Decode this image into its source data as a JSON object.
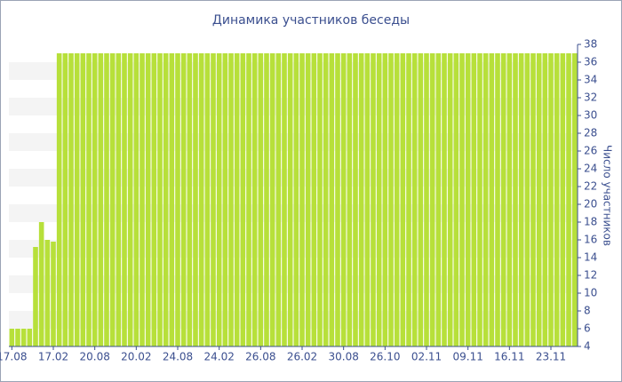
{
  "chart_data": {
    "type": "bar",
    "title": "Динамика участников беседы",
    "y_axis_label": "Число участников",
    "categories": [
      "17.08",
      null,
      null,
      null,
      null,
      null,
      null,
      "17.02",
      null,
      null,
      null,
      null,
      null,
      null,
      "20.08",
      null,
      null,
      null,
      null,
      null,
      null,
      "20.02",
      null,
      null,
      null,
      null,
      null,
      null,
      "24.08",
      null,
      null,
      null,
      null,
      null,
      null,
      "24.02",
      null,
      null,
      null,
      null,
      null,
      null,
      "26.08",
      null,
      null,
      null,
      null,
      null,
      null,
      "26.02",
      null,
      null,
      null,
      null,
      null,
      null,
      "30.08",
      null,
      null,
      null,
      null,
      null,
      null,
      "26.10",
      null,
      null,
      null,
      null,
      null,
      null,
      "02.11",
      null,
      null,
      null,
      null,
      null,
      null,
      "09.11",
      null,
      null,
      null,
      null,
      null,
      null,
      "16.11",
      null,
      null,
      null,
      null,
      null,
      null,
      "23.11",
      null,
      null,
      null,
      null
    ],
    "values": [
      6,
      6,
      6,
      6,
      15.2,
      18,
      16,
      15.8,
      37,
      37,
      37,
      37,
      37,
      37,
      37,
      37,
      37,
      37,
      37,
      37,
      37,
      37,
      37,
      37,
      37,
      37,
      37,
      37,
      37,
      37,
      37,
      37,
      37,
      37,
      37,
      37,
      37,
      37,
      37,
      37,
      37,
      37,
      37,
      37,
      37,
      37,
      37,
      37,
      37,
      37,
      37,
      37,
      37,
      37,
      37,
      37,
      37,
      37,
      37,
      37,
      37,
      37,
      37,
      37,
      37,
      37,
      37,
      37,
      37,
      37,
      37,
      37,
      37,
      37,
      37,
      37,
      37,
      37,
      37,
      37,
      37,
      37,
      37,
      37,
      37,
      37,
      37,
      37,
      37,
      37,
      37,
      37,
      37,
      37,
      37,
      37
    ],
    "color": "#b7e03a",
    "ylim": [
      4,
      38
    ],
    "yticks": [
      4,
      6,
      8,
      10,
      12,
      14,
      16,
      18,
      20,
      22,
      24,
      26,
      28,
      30,
      32,
      34,
      36,
      38
    ],
    "y_axis_side": "right",
    "grid": true
  }
}
